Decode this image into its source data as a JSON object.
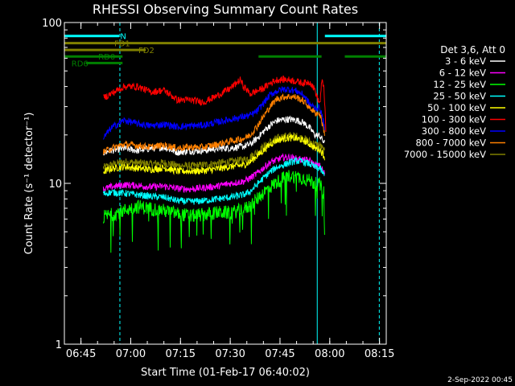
{
  "chart_data": {
    "type": "line",
    "title": "RHESSI Observing Summary Count Rates",
    "xlabel": "Start Time (01-Feb-17 06:40:02)",
    "ylabel": "Count Rate (s⁻¹ detector⁻¹)",
    "yscale": "log",
    "ylim": [
      1,
      100
    ],
    "xlim_minutes": [
      -0.03,
      97.0
    ],
    "x_ticks": [
      {
        "label": "06:45",
        "t": 4.97
      },
      {
        "label": "07:00",
        "t": 19.97
      },
      {
        "label": "07:15",
        "t": 34.97
      },
      {
        "label": "07:30",
        "t": 49.97
      },
      {
        "label": "07:45",
        "t": 64.97
      },
      {
        "label": "08:00",
        "t": 79.97
      },
      {
        "label": "08:15",
        "t": 94.97
      }
    ],
    "y_ticks": [
      {
        "label": "1",
        "v": 1
      },
      {
        "label": "10",
        "v": 10
      },
      {
        "label": "100",
        "v": 100
      }
    ],
    "legend_title": "Det 3,6, Att 0",
    "legend_position": "right",
    "series": [
      {
        "name": "3 - 6 keV",
        "color": "#ffffff",
        "x": [
          11.7,
          14,
          18,
          22,
          26,
          30,
          34,
          38,
          42,
          46,
          50,
          54,
          56,
          58,
          60,
          62,
          64,
          66,
          68,
          70,
          72,
          74,
          75.5,
          77,
          78.5
        ],
        "y": [
          15.5,
          16,
          16.5,
          16,
          16.5,
          16.8,
          15.6,
          15.9,
          16,
          16.5,
          16.6,
          17,
          17.5,
          19,
          21,
          23,
          24.5,
          25,
          25,
          24.7,
          23.9,
          22,
          20,
          19.8,
          17.5
        ]
      },
      {
        "name": "6 - 12 keV",
        "color": "#ff00ff",
        "x": [
          11.7,
          14,
          18,
          22,
          26,
          30,
          34,
          38,
          42,
          46,
          50,
          54,
          56,
          58,
          60,
          62,
          64,
          66,
          68,
          70,
          72,
          74,
          75.5,
          77,
          78.5
        ],
        "y": [
          9.2,
          9.5,
          9.8,
          9.7,
          9.5,
          9.6,
          9.3,
          9.2,
          9.4,
          9.6,
          10,
          10.3,
          10.8,
          11.5,
          12.5,
          13.5,
          14,
          14.5,
          14.5,
          14.2,
          14,
          13.8,
          13,
          12.8,
          11.5
        ]
      },
      {
        "name": "12 - 25 keV",
        "color": "#00ff00",
        "x": [
          11.7,
          14,
          18,
          22,
          26,
          30,
          34,
          38,
          42,
          46,
          50,
          54,
          56,
          58,
          60,
          62,
          64,
          66,
          68,
          70,
          72,
          74,
          75.5,
          77,
          78.5
        ],
        "y": [
          6.2,
          6.4,
          6.8,
          7.2,
          7,
          6.8,
          6.5,
          6.3,
          6.4,
          6.6,
          6.6,
          6.9,
          7.3,
          8,
          8.8,
          9.5,
          10.2,
          10.8,
          11.2,
          11,
          10.8,
          10.4,
          10,
          9.8,
          8.5
        ]
      },
      {
        "name": "25 - 50 keV",
        "color": "#00ffff",
        "x": [
          11.7,
          14,
          18,
          22,
          26,
          30,
          34,
          38,
          42,
          46,
          50,
          54,
          56,
          58,
          60,
          62,
          64,
          66,
          68,
          70,
          72,
          74,
          75.5,
          77,
          78.5
        ],
        "y": [
          8.6,
          8.8,
          8.7,
          8.5,
          8.3,
          8.2,
          7.8,
          7.7,
          7.8,
          8,
          8.2,
          8.5,
          8.9,
          9.8,
          10.8,
          11.8,
          12.6,
          13,
          13.5,
          13.8,
          13.6,
          13.2,
          12.6,
          12.4,
          11
        ]
      },
      {
        "name": "50 - 100 keV",
        "color": "#ffff00",
        "x": [
          11.7,
          14,
          18,
          22,
          26,
          30,
          34,
          38,
          42,
          46,
          50,
          54,
          56,
          58,
          60,
          62,
          64,
          66,
          68,
          70,
          72,
          74,
          75.5,
          77,
          78.5
        ],
        "y": [
          11.8,
          12.3,
          12.7,
          12.4,
          12.2,
          12.5,
          11.9,
          11.9,
          12,
          12.3,
          12.7,
          13,
          13.6,
          14.8,
          16,
          17.5,
          18.5,
          19,
          19.2,
          19,
          18.5,
          17.5,
          16.5,
          16.3,
          14.5
        ]
      },
      {
        "name": "100 - 300 keV",
        "color": "#ff0000",
        "x": [
          11.7,
          14,
          18,
          22,
          26,
          30,
          34,
          38,
          42,
          46,
          50,
          53,
          54,
          56,
          58,
          60,
          62,
          64,
          66,
          68,
          70,
          72,
          74,
          75.5,
          76.2,
          77,
          77.6,
          78.2,
          78.8
        ],
        "y": [
          34,
          36,
          40,
          40,
          37,
          38,
          33,
          33,
          32,
          35,
          39,
          44,
          40,
          36,
          37.5,
          39,
          42,
          44,
          44.3,
          44,
          43,
          42,
          42.8,
          38,
          34,
          31.3,
          43,
          40,
          20
        ]
      },
      {
        "name": "300 - 800 keV",
        "color": "#0000ff",
        "x": [
          11.7,
          14,
          18,
          22,
          26,
          30,
          34,
          38,
          42,
          46,
          50,
          54,
          56,
          58,
          60,
          62,
          64,
          66,
          68,
          70,
          72,
          74,
          75.5,
          77,
          78.5
        ],
        "y": [
          19,
          22,
          24.7,
          23.5,
          22.8,
          23.3,
          22.5,
          22.8,
          23,
          24,
          25,
          26,
          26.5,
          28,
          31.5,
          35.5,
          37.5,
          38.5,
          38.3,
          37.5,
          35.5,
          31,
          29.5,
          29.5,
          22
        ]
      },
      {
        "name": "800 - 7000 keV",
        "color": "#ff8000",
        "x": [
          11.7,
          14,
          18,
          22,
          26,
          30,
          34,
          38,
          42,
          46,
          50,
          54,
          56,
          58,
          60,
          62,
          64,
          66,
          68,
          70,
          72,
          74,
          75.5,
          77,
          78.5
        ],
        "y": [
          15.6,
          16.5,
          17.5,
          17.2,
          16.8,
          17.3,
          16.6,
          16.8,
          16.8,
          17.5,
          18.3,
          19,
          20,
          22.5,
          26,
          30,
          33.5,
          34.5,
          34.7,
          34.3,
          32.5,
          29.5,
          27.5,
          27,
          20
        ]
      },
      {
        "name": "7000 - 15000 keV",
        "color": "#808000",
        "x": [
          11.7,
          14,
          18,
          22,
          26,
          30,
          34,
          38,
          42,
          46,
          50,
          54,
          56,
          58,
          60,
          62,
          64,
          66,
          68,
          70,
          72,
          74,
          75.5,
          77,
          78.5
        ],
        "y": [
          12.5,
          13,
          13.6,
          13.4,
          13.2,
          13.4,
          12.9,
          12.8,
          13,
          13.3,
          13.6,
          14,
          14.6,
          15.6,
          16.8,
          18,
          19,
          19.5,
          19.8,
          19.6,
          19,
          18.2,
          17.5,
          17.3,
          15.5
        ]
      }
    ],
    "state_bars": [
      {
        "label": "N",
        "color": "#00ffff",
        "segments": [
          [
            0,
            16.5
          ],
          [
            78.5,
            97
          ]
        ]
      },
      {
        "label": "FD1",
        "color": "#808000",
        "segments": [
          [
            0,
            97
          ]
        ]
      },
      {
        "label": "FD2",
        "color": "#808000",
        "segments": [
          [
            0,
            24.5
          ]
        ]
      },
      {
        "label": "RD0",
        "color": "#008000",
        "segments": [
          [
            0,
            17.5
          ],
          [
            58.5,
            77.5
          ],
          [
            84.5,
            97
          ]
        ]
      },
      {
        "label": "RD6",
        "color": "#008000",
        "segments": [
          [
            6.5,
            17.5
          ]
        ]
      }
    ],
    "state_bar_levels": [
      82.5,
      74.5,
      67.5,
      61.5,
      56
    ],
    "vlines": [
      {
        "t": -0.03,
        "color": "#00ffff",
        "style": "solid"
      },
      {
        "t": 16.7,
        "color": "#00ffff",
        "style": "dashed"
      },
      {
        "t": 76.2,
        "color": "#00ffff",
        "style": "solid"
      },
      {
        "t": 94.9,
        "color": "#00ffff",
        "style": "dashed"
      }
    ],
    "background_bins": [
      {
        "t0": 0,
        "t1": 11.5,
        "state": "no data"
      },
      {
        "t0": 79.0,
        "t1": 97,
        "state": "no data"
      }
    ]
  },
  "footer": {
    "date_stamp": "2-Sep-2022 00:45"
  }
}
